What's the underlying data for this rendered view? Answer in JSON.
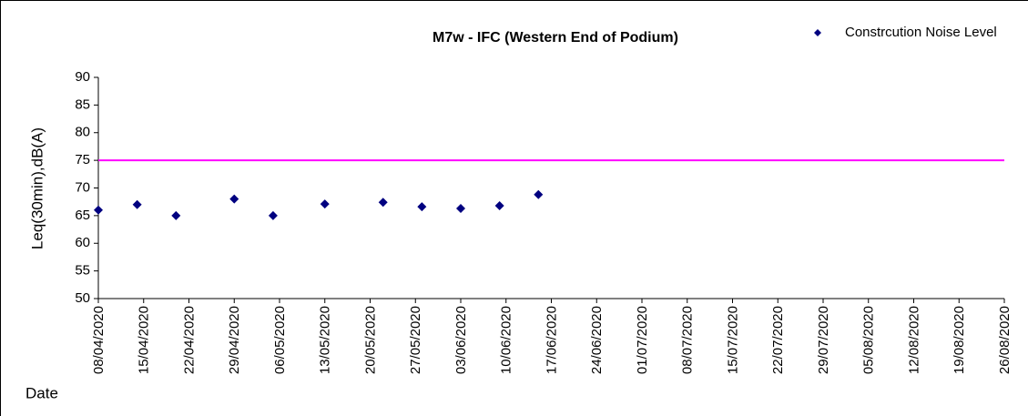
{
  "chart_data": {
    "type": "scatter",
    "title": "M7w - IFC (Western End of Podium)",
    "x_label": "Date",
    "y_label": "Leq(30min),dB(A)",
    "series": [
      {
        "name": "Constrcution Noise Level",
        "color": "#000080",
        "x": [
          "08/04/2020",
          "14/04/2020",
          "20/04/2020",
          "29/04/2020",
          "05/05/2020",
          "13/05/2020",
          "22/05/2020",
          "28/05/2020",
          "03/06/2020",
          "09/06/2020",
          "15/06/2020"
        ],
        "values": [
          66.0,
          67.0,
          65.0,
          68.0,
          65.0,
          67.1,
          67.4,
          66.6,
          66.3,
          66.8,
          68.8
        ]
      }
    ],
    "limit": {
      "value": 75,
      "color": "#ff00ff"
    },
    "xlim": [
      "08/04/2020",
      "26/08/2020"
    ],
    "xticks": [
      "08/04/2020",
      "15/04/2020",
      "22/04/2020",
      "29/04/2020",
      "06/05/2020",
      "13/05/2020",
      "20/05/2020",
      "27/05/2020",
      "03/06/2020",
      "10/06/2020",
      "17/06/2020",
      "24/06/2020",
      "01/07/2020",
      "08/07/2020",
      "15/07/2020",
      "22/07/2020",
      "29/07/2020",
      "05/08/2020",
      "12/08/2020",
      "19/08/2020",
      "26/08/2020"
    ],
    "ylim": [
      50,
      90
    ],
    "yticks": [
      50,
      55,
      60,
      65,
      70,
      75,
      80,
      85,
      90
    ],
    "legend": "top-right"
  }
}
